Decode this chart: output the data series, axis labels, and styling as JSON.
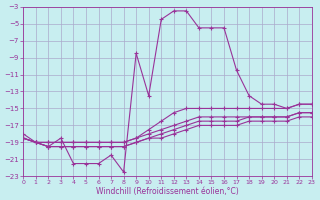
{
  "xlabel": "Windchill (Refroidissement éolien,°C)",
  "bg_color": "#c8eef0",
  "grid_color": "#aaaacc",
  "line_color": "#993399",
  "xlim": [
    0,
    23
  ],
  "ylim": [
    -23,
    -3
  ],
  "xticks": [
    0,
    1,
    2,
    3,
    4,
    5,
    6,
    7,
    8,
    9,
    10,
    11,
    12,
    13,
    14,
    15,
    16,
    17,
    18,
    19,
    20,
    21,
    22,
    23
  ],
  "yticks": [
    -23,
    -21,
    -19,
    -17,
    -15,
    -13,
    -11,
    -9,
    -7,
    -5,
    -3
  ],
  "line1_x": [
    0,
    1,
    2,
    3,
    4,
    5,
    6,
    7,
    8,
    9,
    10,
    11,
    12,
    13,
    14,
    15,
    16,
    17,
    18,
    19,
    20,
    21,
    22,
    23
  ],
  "line1_y": [
    -18.0,
    -19.0,
    -19.5,
    -18.5,
    -21.5,
    -21.5,
    -21.5,
    -20.5,
    -22.5,
    -8.5,
    -13.5,
    -4.5,
    -3.5,
    -3.5,
    -5.5,
    -5.5,
    -5.5,
    -10.5,
    -13.5,
    -14.5,
    -14.5,
    -15.0,
    -14.5,
    -14.5
  ],
  "line2_x": [
    0,
    1,
    2,
    3,
    4,
    5,
    6,
    7,
    8,
    9,
    10,
    11,
    12,
    13,
    14,
    15,
    16,
    17,
    18,
    19,
    20,
    21,
    22,
    23
  ],
  "line2_y": [
    -18.5,
    -19.0,
    -19.0,
    -19.0,
    -19.0,
    -19.0,
    -19.0,
    -19.0,
    -19.0,
    -18.5,
    -17.5,
    -16.5,
    -15.5,
    -15.0,
    -15.0,
    -15.0,
    -15.0,
    -15.0,
    -15.0,
    -15.0,
    -15.0,
    -15.0,
    -14.5,
    -14.5
  ],
  "line3_x": [
    0,
    1,
    2,
    3,
    4,
    5,
    6,
    7,
    8,
    9,
    10,
    11,
    12,
    13,
    14,
    15,
    16,
    17,
    18,
    19,
    20,
    21,
    22,
    23
  ],
  "line3_y": [
    -18.5,
    -19.0,
    -19.0,
    -19.0,
    -19.0,
    -19.0,
    -19.0,
    -19.0,
    -19.0,
    -18.5,
    -18.0,
    -17.5,
    -17.0,
    -16.5,
    -16.0,
    -16.0,
    -16.0,
    -16.0,
    -16.0,
    -16.0,
    -16.0,
    -16.0,
    -15.5,
    -15.5
  ],
  "line4_x": [
    0,
    1,
    2,
    3,
    4,
    5,
    6,
    7,
    8,
    9,
    10,
    11,
    12,
    13,
    14,
    15,
    16,
    17,
    18,
    19,
    20,
    21,
    22,
    23
  ],
  "line4_y": [
    -18.5,
    -19.0,
    -19.5,
    -19.5,
    -19.5,
    -19.5,
    -19.5,
    -19.5,
    -19.5,
    -19.0,
    -18.5,
    -18.0,
    -17.5,
    -17.0,
    -16.5,
    -16.5,
    -16.5,
    -16.5,
    -16.0,
    -16.0,
    -16.0,
    -16.0,
    -15.5,
    -15.5
  ],
  "line5_x": [
    0,
    1,
    2,
    3,
    4,
    5,
    6,
    7,
    8,
    9,
    10,
    11,
    12,
    13,
    14,
    15,
    16,
    17,
    18,
    19,
    20,
    21,
    22,
    23
  ],
  "line5_y": [
    -18.5,
    -19.0,
    -19.5,
    -19.5,
    -19.5,
    -19.5,
    -19.5,
    -19.5,
    -19.5,
    -19.0,
    -18.5,
    -18.5,
    -18.0,
    -17.5,
    -17.0,
    -17.0,
    -17.0,
    -17.0,
    -16.5,
    -16.5,
    -16.5,
    -16.5,
    -16.0,
    -16.0
  ]
}
